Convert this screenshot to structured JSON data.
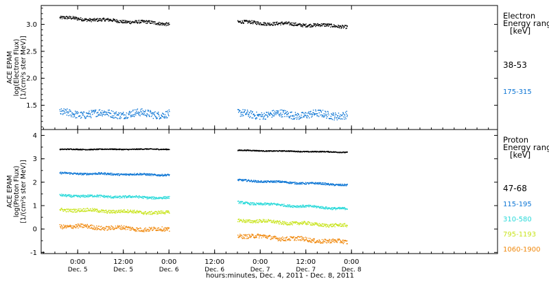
{
  "chart_data": [
    {
      "type": "scatter",
      "panel": "electron",
      "ylabel_lines": [
        "ACE EPAM",
        "log(Electron Flux)",
        "[1/(cm²s ster MeV)]"
      ],
      "yticks": [
        1.5,
        2.0,
        2.5,
        3.0
      ],
      "ylim": [
        1.05,
        3.35
      ],
      "legend_title": [
        "Electron",
        "Energy range",
        "[keV]"
      ],
      "series": [
        {
          "name": "38-53",
          "color": "#000000",
          "level": [
            3.13,
            3.02
          ],
          "level2": [
            3.05,
            2.97
          ],
          "noise": 0.03
        },
        {
          "name": "175-315",
          "color": "#0a74d4",
          "level": [
            1.35,
            1.35
          ],
          "level2": [
            1.34,
            1.33
          ],
          "noise": 0.07
        }
      ]
    },
    {
      "type": "scatter",
      "panel": "proton",
      "ylabel_lines": [
        "ACE EPAM",
        "log(Proton Flux)",
        "[1/(cm²s ster MeV)]"
      ],
      "yticks": [
        -1,
        0,
        1,
        2,
        3,
        4
      ],
      "ylim": [
        -1.05,
        4.25
      ],
      "legend_title": [
        "Proton",
        "Energy range",
        "[keV]"
      ],
      "series": [
        {
          "name": "47-68",
          "color": "#000000",
          "level": [
            3.42,
            3.43
          ],
          "level2": [
            3.38,
            3.3
          ],
          "noise": 0.02
        },
        {
          "name": "115-195",
          "color": "#0a74d4",
          "level": [
            2.4,
            2.33
          ],
          "level2": [
            2.1,
            1.9
          ],
          "noise": 0.04
        },
        {
          "name": "310-580",
          "color": "#27d9d9",
          "level": [
            1.45,
            1.35
          ],
          "level2": [
            1.15,
            0.88
          ],
          "noise": 0.05
        },
        {
          "name": "795-1193",
          "color": "#c8e41c",
          "level": [
            0.85,
            0.7
          ],
          "level2": [
            0.4,
            0.15
          ],
          "noise": 0.07
        },
        {
          "name": "1060-1900",
          "color": "#f0880c",
          "level": [
            0.15,
            -0.02
          ],
          "level2": [
            -0.25,
            -0.55
          ],
          "noise": 0.09
        }
      ]
    }
  ],
  "x_axis": {
    "xlim": [
      -0.4,
      4.6
    ],
    "data_segments": [
      [
        -0.2,
        1.0
      ],
      [
        1.75,
        2.95
      ]
    ],
    "ticks": [
      {
        "x": 0.0,
        "time": "0:00",
        "date": "Dec. 5"
      },
      {
        "x": 0.5,
        "time": "12:00",
        "date": "Dec. 5"
      },
      {
        "x": 1.0,
        "time": "0:00",
        "date": "Dec. 6"
      },
      {
        "x": 1.5,
        "time": "12:00",
        "date": "Dec. 6"
      },
      {
        "x": 2.0,
        "time": "0:00",
        "date": "Dec. 7"
      },
      {
        "x": 2.5,
        "time": "12:00",
        "date": "Dec. 7"
      },
      {
        "x": 3.0,
        "time": "0:00",
        "date": "Dec. 8"
      }
    ],
    "label": "hours:minutes, Dec.  4, 2011 - Dec.  8, 2011"
  }
}
